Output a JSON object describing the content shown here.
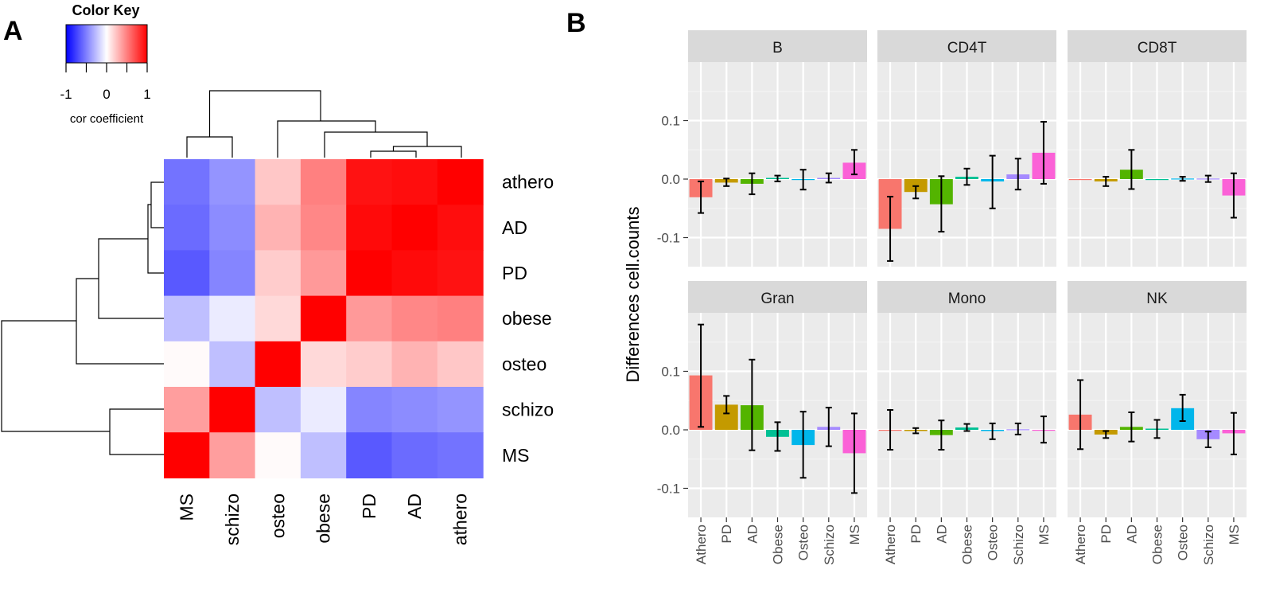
{
  "panels": {
    "a": {
      "letter": "A",
      "color_key": {
        "title": "Color Key",
        "ticks": [
          "-1",
          "0",
          "1"
        ],
        "label": "cor coefficient",
        "colors": {
          "low": "#0000ff",
          "mid": "#ffffff",
          "high": "#ff0000"
        }
      }
    },
    "b": {
      "letter": "B",
      "ylabel": "Differences cell.counts",
      "yticks": [
        "0.1",
        "0.0",
        "-0.1"
      ]
    }
  },
  "chart_data": [
    {
      "type": "heatmap",
      "title": "",
      "row_labels": [
        "athero",
        "AD",
        "PD",
        "obese",
        "osteo",
        "schizo",
        "MS"
      ],
      "col_labels": [
        "MS",
        "schizo",
        "osteo",
        "obese",
        "PD",
        "AD",
        "athero"
      ],
      "scale": [
        -1,
        1
      ],
      "values": [
        [
          -0.55,
          -0.42,
          0.22,
          0.5,
          0.93,
          0.95,
          1.0
        ],
        [
          -0.58,
          -0.45,
          0.3,
          0.47,
          0.96,
          1.0,
          0.95
        ],
        [
          -0.65,
          -0.48,
          0.2,
          0.4,
          1.0,
          0.96,
          0.93
        ],
        [
          -0.25,
          -0.08,
          0.15,
          1.0,
          0.4,
          0.47,
          0.5
        ],
        [
          0.02,
          -0.25,
          1.0,
          0.15,
          0.2,
          0.3,
          0.22
        ],
        [
          0.38,
          1.0,
          -0.25,
          -0.08,
          -0.48,
          -0.45,
          -0.42
        ],
        [
          1.0,
          0.38,
          0.02,
          -0.25,
          -0.65,
          -0.58,
          -0.55
        ]
      ]
    },
    {
      "type": "bar",
      "title": "",
      "xlabel": "",
      "ylabel": "Differences cell.counts",
      "ylim": [
        -0.16,
        0.19
      ],
      "categories": [
        "Athero",
        "PD",
        "AD",
        "Obese",
        "Osteo",
        "Schizo",
        "MS"
      ],
      "category_colors": [
        "#f8766d",
        "#c49a00",
        "#53b400",
        "#00c094",
        "#00b6eb",
        "#a58aff",
        "#fb61d7"
      ],
      "facets": [
        {
          "name": "B",
          "values": [
            -0.031,
            -0.006,
            -0.008,
            0.002,
            -0.001,
            0.002,
            0.028
          ],
          "err_low": [
            -0.058,
            -0.012,
            -0.026,
            -0.004,
            -0.018,
            -0.006,
            0.008
          ],
          "err_high": [
            -0.004,
            0.001,
            0.01,
            0.006,
            0.016,
            0.01,
            0.05
          ]
        },
        {
          "name": "CD4T",
          "values": [
            -0.085,
            -0.022,
            -0.043,
            0.004,
            -0.004,
            0.008,
            0.045
          ],
          "err_low": [
            -0.14,
            -0.033,
            -0.09,
            -0.01,
            -0.05,
            -0.018,
            -0.008
          ],
          "err_high": [
            -0.03,
            -0.012,
            0.005,
            0.018,
            0.04,
            0.035,
            0.098
          ]
        },
        {
          "name": "CD8T",
          "values": [
            0.0,
            -0.004,
            0.016,
            0.0,
            0.001,
            0.001,
            -0.028
          ],
          "err_low": [
            0.0,
            -0.012,
            -0.017,
            0.0,
            -0.003,
            -0.005,
            -0.066
          ],
          "err_high": [
            0.0,
            0.004,
            0.05,
            0.0,
            0.004,
            0.006,
            0.01
          ]
        },
        {
          "name": "Gran",
          "values": [
            0.093,
            0.043,
            0.042,
            -0.012,
            -0.026,
            0.005,
            -0.04
          ],
          "err_low": [
            0.005,
            0.028,
            -0.035,
            -0.036,
            -0.082,
            -0.028,
            -0.108
          ],
          "err_high": [
            0.18,
            0.058,
            0.12,
            0.013,
            0.031,
            0.038,
            0.028
          ]
        },
        {
          "name": "Mono",
          "values": [
            0.0,
            -0.002,
            -0.009,
            0.004,
            -0.002,
            0.001,
            0.0
          ],
          "err_low": [
            -0.034,
            -0.006,
            -0.034,
            -0.002,
            -0.016,
            -0.008,
            -0.022
          ],
          "err_high": [
            0.034,
            0.003,
            0.016,
            0.01,
            0.011,
            0.011,
            0.023
          ]
        },
        {
          "name": "NK",
          "values": [
            0.026,
            -0.008,
            0.005,
            0.002,
            0.037,
            -0.016,
            -0.006
          ],
          "err_low": [
            -0.033,
            -0.014,
            -0.02,
            -0.014,
            0.015,
            -0.03,
            -0.042
          ],
          "err_high": [
            0.085,
            -0.002,
            0.03,
            0.017,
            0.06,
            -0.003,
            0.029
          ]
        }
      ]
    }
  ]
}
